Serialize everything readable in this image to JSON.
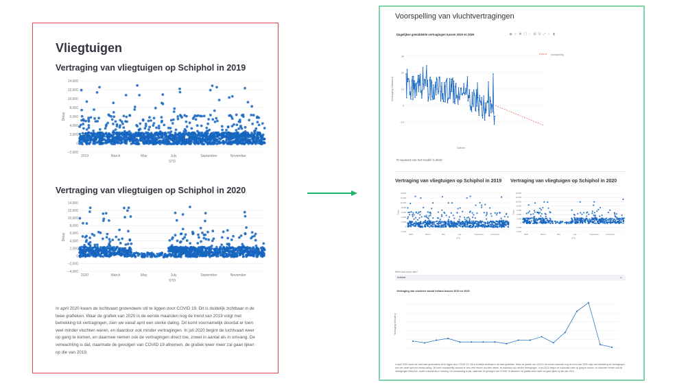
{
  "left": {
    "title": "Vliegtuigen",
    "chart1_title": "Vertraging van vliegtuigen op Schiphol in 2019",
    "chart2_title": "Vertraging van vliegtuigen op Schiphol in 2020",
    "paragraph": "In april 2020 kwam de luchtvaart grotendeels stil te liggen door COVID 19. Dit is duidelijk zichtbaar in de twee grafieken. Waar de grafiek van 2020 in de eerste maanden nog de trend van 2019 volgt met betrekking tot vertragingen, zien we vanaf april een sterke daling. Dit komt voornamelijk doordat er toen veel minder vluchten waren, en daardoor ook minder vertragingen. In juli 2020 begint de luchtvaart weer op gang te komen, en daarmee nemen ook de vertragingen direct toe, zowel in aantal als in omvang. De verwachting is dat, naarmate de gevolgen van COVID 19 afnemen, de grafiek weer meer zal gaan lijken op die van 2019."
  },
  "right": {
    "title": "Voorspelling van vluchtvertragingen",
    "forecast_title": "Dagelijkse gemiddelde vertragingen tussen 2019 en 2020",
    "r2_text": "R-squared van het model: 0.3515",
    "small1_title": "Vertraging van vliegtuigen op Schiphol in 2019",
    "small2_title": "Vertraging van vliegtuigen op Schiphol in 2020",
    "select_label": "Welk land wil je zien?",
    "select_value": "Ireland",
    "country_chart_title": "Vertraging van vluchten vanuit Ireland tussen 2019 en 2020",
    "bottom_paragraph": "In april 2020 kwam de luchtvaart grotendeels stil te liggen door COVID 19. Dit is duidelijk zichtbaar in de twee grafieken. Waar de grafiek van 2020 in de eerste maanden nog de trend van 2019 volgt met betrekking tot vertragingen, zien we vanaf april een sterke daling. Dit komt voornamelijk doordat er toen veel minder vluchten waren, en daardoor ook minder vertragingen. In juli 2020 begint de luchtvaart weer op gang te komen, en daarmee nemen ook de vertragingen direct toe, zowel in aantal als in omvang. De verwachting is dat, naarmate de gevolgen van COVID 19 afnemen, de grafiek weer meer zal gaan lijken op die van 2019."
  },
  "colors": {
    "accent_red": "#e0474c",
    "accent_green": "#7fd3a7",
    "arrow_green": "#1db36a",
    "plot_blue": "#1565c0",
    "forecast_red": "#e53935"
  },
  "chart_data": [
    {
      "type": "scatter",
      "title": "Vertraging van vliegtuigen op Schiphol in 2019",
      "xlabel": "STD",
      "ylabel": "Delay",
      "x_ticks": [
        "2019",
        "March",
        "May",
        "July",
        "September",
        "November"
      ],
      "y_ticks": [
        -2000,
        0,
        2000,
        4000,
        6000,
        8000,
        10000,
        12000,
        14000
      ],
      "ylim": [
        -2000,
        14000
      ],
      "note": "dense point cloud, mostly between 0 and 3000 with outliers up to about 13000"
    },
    {
      "type": "scatter",
      "title": "Vertraging van vliegtuigen op Schiphol in 2020",
      "xlabel": "STD",
      "ylabel": "Delay",
      "x_ticks": [
        "2020",
        "March",
        "May",
        "July",
        "September",
        "November"
      ],
      "y_ticks": [
        -4000,
        -2000,
        0,
        2000,
        4000,
        6000,
        8000,
        10000,
        12000,
        14000
      ],
      "ylim": [
        -4000,
        14000
      ],
      "note": "dense until April, sparse after April, increases again from July"
    },
    {
      "type": "line",
      "title": "Dagelijkse gemiddelde vertragingen tussen 2019 en 2020",
      "xlabel": "Datum",
      "ylabel": "Vertraging (Minuten)",
      "y_ticks": [
        -10,
        0,
        10,
        20,
        30
      ],
      "legend": [
        "Voorspelling"
      ],
      "forecast": {
        "start": 0,
        "end": -12
      }
    },
    {
      "type": "line",
      "title": "Vertraging van vluchten vanuit Ireland tussen 2019 en 2020",
      "ylabel": "Vertraging (Minuten)",
      "values": [
        8,
        6,
        9,
        11,
        7,
        7,
        7,
        7,
        5,
        9,
        9,
        13,
        6,
        18,
        42,
        52,
        4,
        1
      ]
    }
  ]
}
